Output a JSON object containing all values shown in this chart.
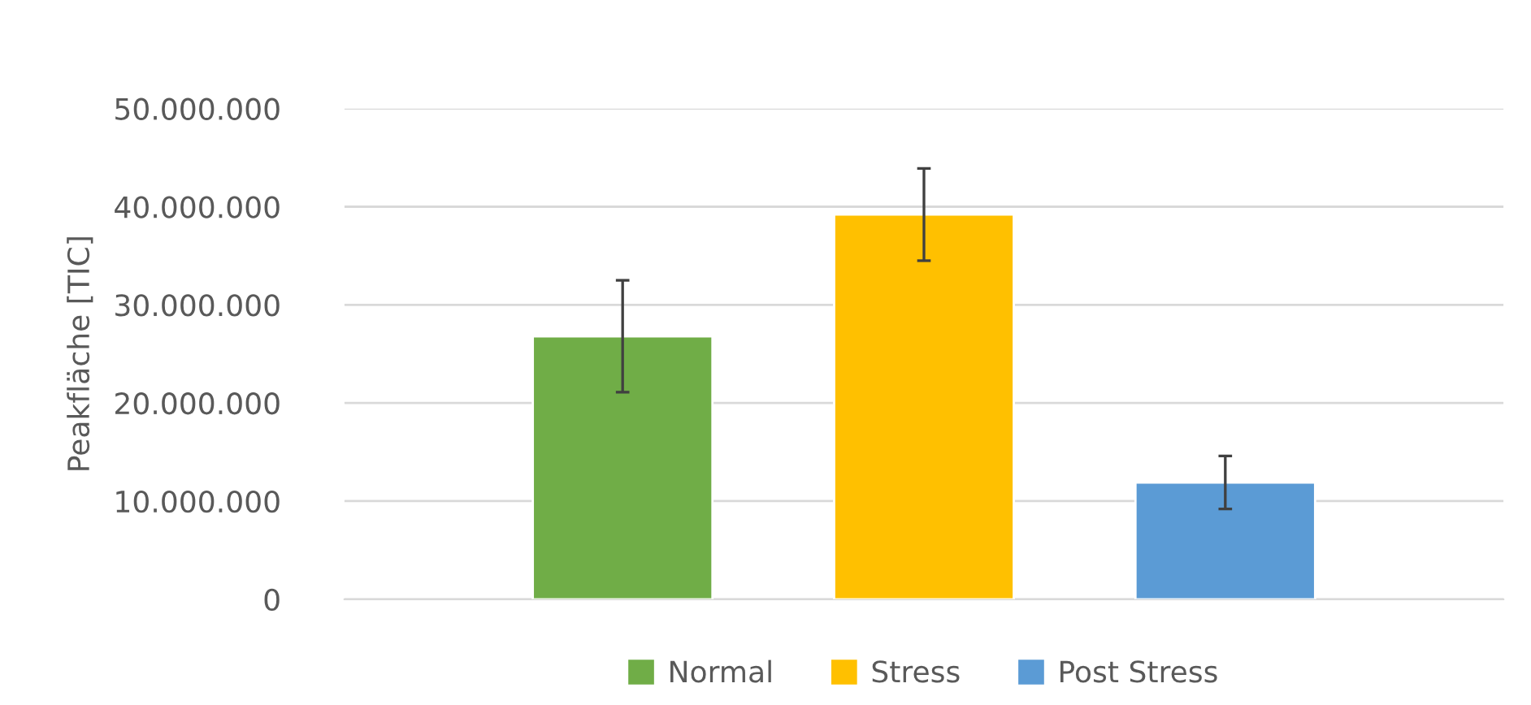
{
  "chart_data": {
    "type": "bar",
    "ylabel": "Peakfläche [TIC]",
    "categories": [
      null
    ],
    "series": [
      {
        "name": "Normal",
        "color": "#70ad47",
        "values": [
          26800000
        ],
        "errors": [
          5700000
        ]
      },
      {
        "name": "Stress",
        "color": "#ffc000",
        "values": [
          39200000
        ],
        "errors": [
          4700000
        ]
      },
      {
        "name": "Post Stress",
        "color": "#5b9bd5",
        "values": [
          11900000
        ],
        "errors": [
          2700000
        ]
      }
    ],
    "ylim": [
      0,
      50000000
    ],
    "yticks": [
      0,
      {
        "value": 10000000,
        "label": "10.000.000"
      },
      {
        "value": 20000000,
        "label": "20.000.000"
      },
      {
        "value": 30000000,
        "label": "30.000.000"
      },
      {
        "value": 40000000,
        "label": "40.000.000"
      },
      {
        "value": 50000000,
        "label": "50.000.000"
      }
    ],
    "grid": "y",
    "legend": "bottom",
    "tick_labels": "y"
  }
}
